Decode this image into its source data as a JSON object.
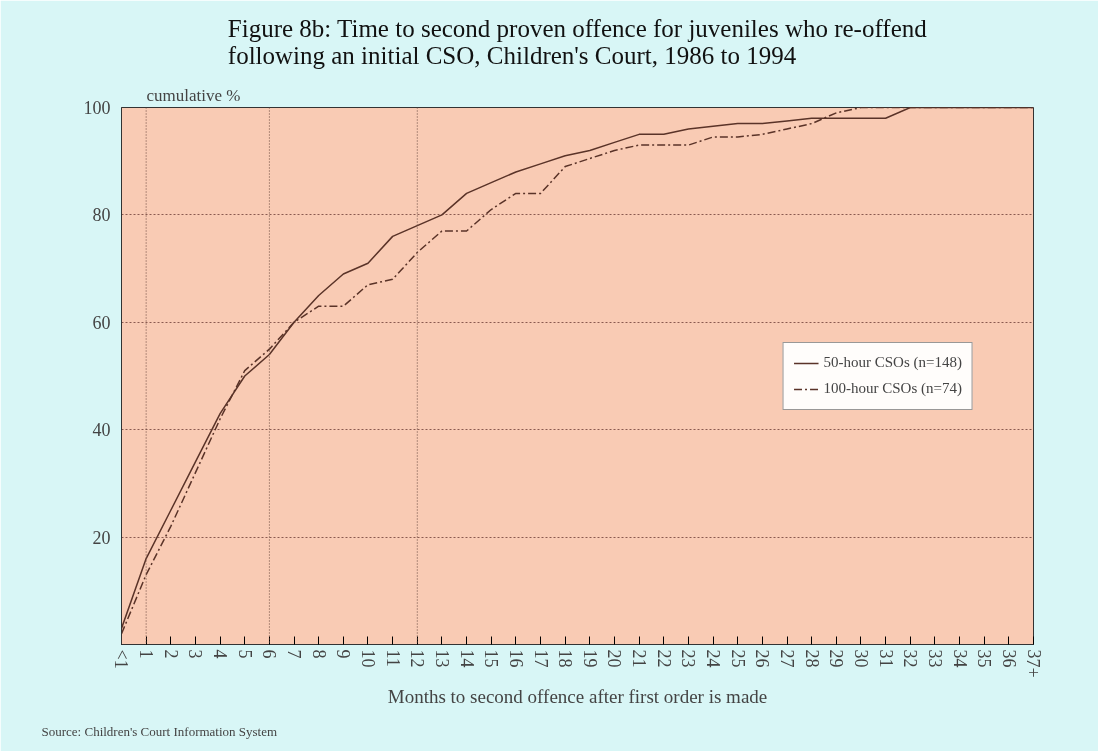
{
  "chart_data": {
    "type": "line",
    "title": "Figure 8b: Time to second proven offence for juveniles who re-offend\nfollowing an initial CSO, Children's Court, 1986 to 1994",
    "ylabel": "cumulative %",
    "xlabel": "Months to second offence after first order is made",
    "annotations": [
      "Source:  Children's Court Information System"
    ],
    "categories": [
      "<1",
      "1",
      "2",
      "3",
      "4",
      "5",
      "6",
      "7",
      "8",
      "9",
      "10",
      "11",
      "12",
      "13",
      "14",
      "15",
      "16",
      "17",
      "18",
      "19",
      "20",
      "21",
      "22",
      "23",
      "24",
      "25",
      "26",
      "27",
      "28",
      "29",
      "30",
      "31",
      "32",
      "33",
      "34",
      "35",
      "36",
      "37+"
    ],
    "series": [
      {
        "name": "50-hour CSOs (n=148)",
        "color": "#5a3328",
        "line_style": "solid",
        "values": [
          3,
          16,
          25,
          34,
          43,
          50,
          54,
          60,
          65,
          69,
          71,
          76,
          78,
          80,
          84,
          86,
          88,
          89.5,
          91,
          92,
          93.5,
          95,
          95,
          96,
          96.5,
          97,
          97,
          97.5,
          98,
          98,
          98,
          98,
          100,
          100,
          100,
          100,
          100,
          100
        ]
      },
      {
        "name": "100-hour CSOs (n=74)",
        "color": "#5a3328",
        "line_style": "dashed",
        "values": [
          2,
          13,
          22,
          32,
          42,
          51,
          55,
          60,
          63,
          63,
          67,
          68,
          73,
          77,
          77,
          81,
          84,
          84,
          89,
          90.5,
          92,
          93,
          93,
          93,
          94.5,
          94.5,
          95,
          96,
          97,
          99,
          100,
          100,
          100,
          100,
          100,
          100,
          100,
          100
        ]
      }
    ],
    "ylim": [
      0,
      100
    ],
    "yticks": [
      20,
      40,
      60,
      80,
      100
    ],
    "grid": "y",
    "legend": "right",
    "ref_lines": [
      {
        "axis": "x",
        "value": "1"
      },
      {
        "axis": "x",
        "value": "6"
      },
      {
        "axis": "x",
        "value": "12"
      }
    ]
  }
}
